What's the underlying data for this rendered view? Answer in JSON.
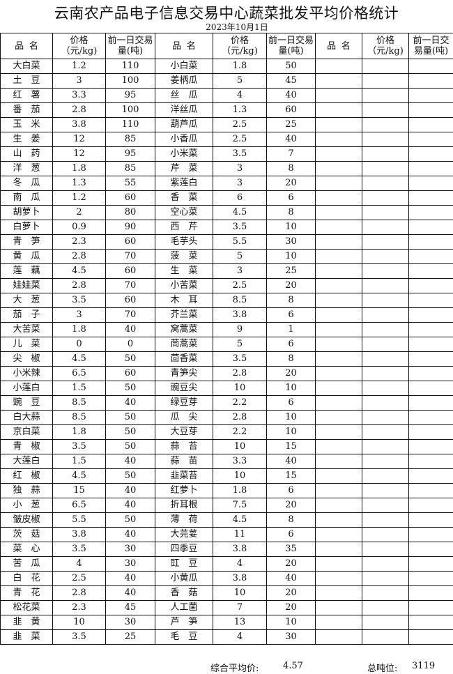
{
  "title": "云南农产品电子信息交易中心蔬菜批发平均价格统计",
  "date": "2023年10月1日",
  "headers": {
    "name": "品名",
    "price": "价格（元/kg)",
    "volume": "前一日交易量(吨)"
  },
  "rows": [
    [
      [
        "大白菜",
        "1.2",
        "110"
      ],
      [
        "小白菜",
        "1.8",
        "50"
      ]
    ],
    [
      [
        "土豆",
        "3",
        "100"
      ],
      [
        "姜柄瓜",
        "5",
        "45"
      ]
    ],
    [
      [
        "红薯",
        "3.3",
        "95"
      ],
      [
        "丝瓜",
        "4",
        "40"
      ]
    ],
    [
      [
        "番茄",
        "2.8",
        "100"
      ],
      [
        "洋丝瓜",
        "1.3",
        "60"
      ]
    ],
    [
      [
        "玉米",
        "3.8",
        "110"
      ],
      [
        "葫芦瓜",
        "2.5",
        "25"
      ]
    ],
    [
      [
        "生姜",
        "12",
        "85"
      ],
      [
        "小香瓜",
        "2.5",
        "40"
      ]
    ],
    [
      [
        "山药",
        "12",
        "95"
      ],
      [
        "小米菜",
        "3.5",
        "7"
      ]
    ],
    [
      [
        "洋葱",
        "1.8",
        "85"
      ],
      [
        "芹菜",
        "3",
        "8"
      ]
    ],
    [
      [
        "冬瓜",
        "1.3",
        "55"
      ],
      [
        "紫莲白",
        "3",
        "20"
      ]
    ],
    [
      [
        "南瓜",
        "1.2",
        "60"
      ],
      [
        "香菜",
        "6",
        "6"
      ]
    ],
    [
      [
        "胡萝卜",
        "2",
        "80"
      ],
      [
        "空心菜",
        "4.5",
        "8"
      ]
    ],
    [
      [
        "白萝卜",
        "0.9",
        "90"
      ],
      [
        "西芹",
        "3.5",
        "10"
      ]
    ],
    [
      [
        "青笋",
        "2.3",
        "60"
      ],
      [
        "毛芋头",
        "5.5",
        "30"
      ]
    ],
    [
      [
        "黄瓜",
        "2.8",
        "70"
      ],
      [
        "菠菜",
        "5",
        "10"
      ]
    ],
    [
      [
        "莲藕",
        "4.5",
        "60"
      ],
      [
        "生菜",
        "3",
        "25"
      ]
    ],
    [
      [
        "娃娃菜",
        "2.8",
        "70"
      ],
      [
        "小苦菜",
        "2.5",
        "20"
      ]
    ],
    [
      [
        "大葱",
        "3.5",
        "60"
      ],
      [
        "木耳",
        "8.5",
        "8"
      ]
    ],
    [
      [
        "茄子",
        "3",
        "70"
      ],
      [
        "芥兰菜",
        "3.8",
        "6"
      ]
    ],
    [
      [
        "大苦菜",
        "1.8",
        "40"
      ],
      [
        "窝蒿菜",
        "9",
        "1"
      ]
    ],
    [
      [
        "儿菜",
        "0",
        "0"
      ],
      [
        "茼蒿菜",
        "5",
        "6"
      ]
    ],
    [
      [
        "尖椒",
        "4.5",
        "50"
      ],
      [
        "茴香菜",
        "3.5",
        "8"
      ]
    ],
    [
      [
        "小米辣",
        "6.5",
        "60"
      ],
      [
        "青笋尖",
        "2.8",
        "20"
      ]
    ],
    [
      [
        "小莲白",
        "1.5",
        "50"
      ],
      [
        "豌豆尖",
        "10",
        "10"
      ]
    ],
    [
      [
        "豌豆",
        "8.5",
        "40"
      ],
      [
        "绿豆芽",
        "2.2",
        "6"
      ]
    ],
    [
      [
        "白大蒜",
        "8.5",
        "50"
      ],
      [
        "瓜尖",
        "2.8",
        "10"
      ]
    ],
    [
      [
        "京白菜",
        "1.8",
        "50"
      ],
      [
        "大豆芽",
        "2.2",
        "10"
      ]
    ],
    [
      [
        "青椒",
        "3.5",
        "50"
      ],
      [
        "蒜苔",
        "10",
        "15"
      ]
    ],
    [
      [
        "大莲白",
        "1.5",
        "40"
      ],
      [
        "蒜苗",
        "3.3",
        "40"
      ]
    ],
    [
      [
        "红椒",
        "4.5",
        "50"
      ],
      [
        "韭菜苔",
        "10",
        "15"
      ]
    ],
    [
      [
        "独蒜",
        "15",
        "40"
      ],
      [
        "红萝卜",
        "1.8",
        "6"
      ]
    ],
    [
      [
        "小葱",
        "6.5",
        "40"
      ],
      [
        "折耳根",
        "7.5",
        "20"
      ]
    ],
    [
      [
        "皱皮椒",
        "5.5",
        "50"
      ],
      [
        "薄荷",
        "4.5",
        "8"
      ]
    ],
    [
      [
        "茨菇",
        "3.8",
        "40"
      ],
      [
        "大芫荽",
        "11",
        "6"
      ]
    ],
    [
      [
        "菜心",
        "3.5",
        "30"
      ],
      [
        "四季豆",
        "3.8",
        "35"
      ]
    ],
    [
      [
        "苦瓜",
        "4",
        "30"
      ],
      [
        "豇豆",
        "4",
        "20"
      ]
    ],
    [
      [
        "白花",
        "2.5",
        "40"
      ],
      [
        "小黄瓜",
        "3.8",
        "40"
      ]
    ],
    [
      [
        "青花",
        "2.8",
        "40"
      ],
      [
        "香菇",
        "10",
        "20"
      ]
    ],
    [
      [
        "松花菜",
        "2.3",
        "45"
      ],
      [
        "人工菌",
        "7",
        "20"
      ]
    ],
    [
      [
        "韭黄",
        "10",
        "30"
      ],
      [
        "芦笋",
        "13",
        "10"
      ]
    ],
    [
      [
        "韭菜",
        "3.5",
        "25"
      ],
      [
        "毛豆",
        "4",
        "30"
      ]
    ]
  ],
  "footer": {
    "avg_label": "综合平均价:",
    "avg_value": "4.57",
    "total_label": "总吨位:",
    "total_value": "3119"
  }
}
